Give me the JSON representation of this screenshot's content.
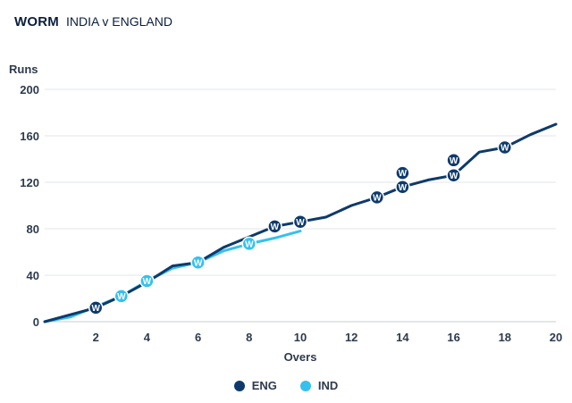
{
  "header": {
    "title": "WORM",
    "subtitle": "INDIA v ENGLAND"
  },
  "chart_data": {
    "type": "line",
    "xlabel": "Overs",
    "ylabel": "Runs",
    "xlim": [
      0,
      20
    ],
    "ylim": [
      0,
      200
    ],
    "x_ticks": [
      2,
      4,
      6,
      8,
      10,
      12,
      14,
      16,
      18,
      20
    ],
    "y_ticks": [
      0,
      40,
      80,
      120,
      160,
      200
    ],
    "grid": "horizontal",
    "legend_position": "bottom-center",
    "series": [
      {
        "name": "ENG",
        "color": "#0e3a6b",
        "x": [
          0,
          1,
          2,
          3,
          4,
          5,
          6,
          7,
          8,
          9,
          10,
          11,
          12,
          13,
          14,
          15,
          16,
          17,
          18,
          19,
          20
        ],
        "y": [
          0,
          6,
          12,
          22,
          34,
          48,
          51,
          64,
          73,
          82,
          86,
          90,
          100,
          107,
          116,
          122,
          126,
          146,
          150,
          161,
          170
        ],
        "wickets": [
          {
            "x": 2,
            "y": 12
          },
          {
            "x": 9,
            "y": 82
          },
          {
            "x": 10,
            "y": 86
          },
          {
            "x": 13,
            "y": 107
          },
          {
            "x": 14,
            "y": 116
          },
          {
            "x": 14,
            "y": 128
          },
          {
            "x": 16,
            "y": 126
          },
          {
            "x": 16,
            "y": 139
          },
          {
            "x": 18,
            "y": 150
          }
        ]
      },
      {
        "name": "IND",
        "color": "#35c1ee",
        "x": [
          0,
          1,
          2,
          3,
          4,
          5,
          6,
          7,
          8,
          9,
          10
        ],
        "y": [
          0,
          4,
          13,
          22,
          35,
          46,
          51,
          61,
          67,
          72,
          78
        ],
        "wickets": [
          {
            "x": 3,
            "y": 22
          },
          {
            "x": 4,
            "y": 35
          },
          {
            "x": 6,
            "y": 51
          },
          {
            "x": 8,
            "y": 67
          }
        ]
      }
    ],
    "wicket_marker_label": "W"
  }
}
